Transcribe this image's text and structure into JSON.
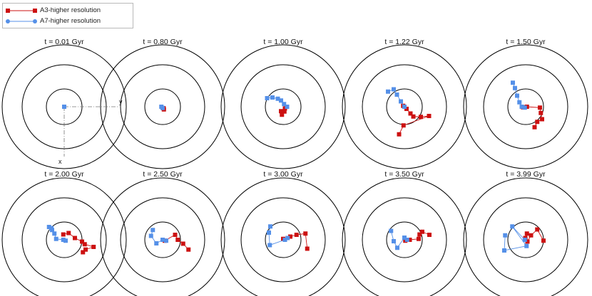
{
  "legend": {
    "a3_label": "A3-higher resolution",
    "a7_label": "A7-higher resolution"
  },
  "colors": {
    "a3": "#cc1111",
    "a7": "#5590e8",
    "ring": "#000000",
    "axis": "#777777"
  },
  "axis_labels": {
    "x": "x",
    "y": "y"
  },
  "chart_data": {
    "type": "scatter",
    "grid": false,
    "rings_per_panel": 3,
    "units": "inner ring radius = 1",
    "panels": [
      {
        "title": "t = 0.01 Gyr",
        "a3": [
          [
            0.0,
            0.0
          ]
        ],
        "a7": [
          [
            0.0,
            0.0
          ]
        ]
      },
      {
        "title": "t = 0.80 Gyr",
        "a3": [
          [
            0.07,
            -0.15
          ],
          [
            0.05,
            -0.08
          ]
        ],
        "a7": [
          [
            -0.07,
            0.0
          ],
          [
            0.0,
            -0.07
          ]
        ]
      },
      {
        "title": "t = 1.00 Gyr",
        "a3": [
          [
            0.17,
            0.0
          ],
          [
            0.1,
            -0.1
          ],
          [
            0.07,
            -0.27
          ],
          [
            -0.12,
            -0.25
          ],
          [
            -0.07,
            -0.45
          ]
        ],
        "a7": [
          [
            -0.9,
            0.48
          ],
          [
            -0.6,
            0.52
          ],
          [
            -0.3,
            0.45
          ],
          [
            -0.12,
            0.35
          ],
          [
            0.05,
            0.15
          ],
          [
            0.22,
            0.0
          ]
        ]
      },
      {
        "title": "t = 1.22 Gyr",
        "a3": [
          [
            -0.07,
            0.05
          ],
          [
            0.12,
            -0.12
          ],
          [
            0.34,
            -0.38
          ],
          [
            0.5,
            -0.55
          ],
          [
            0.92,
            -0.57
          ],
          [
            1.38,
            -0.52
          ],
          [
            -0.05,
            -1.05
          ],
          [
            -0.3,
            -1.55
          ]
        ],
        "a7": [
          [
            -0.92,
            0.85
          ],
          [
            -0.6,
            0.98
          ],
          [
            -0.42,
            0.68
          ],
          [
            -0.2,
            0.3
          ],
          [
            0.0,
            0.0
          ]
        ]
      },
      {
        "title": "t = 1.50 Gyr",
        "a3": [
          [
            -0.15,
            -0.03
          ],
          [
            0.07,
            0.0
          ],
          [
            0.8,
            -0.05
          ],
          [
            0.85,
            -0.35
          ],
          [
            0.92,
            -0.7
          ],
          [
            0.65,
            -0.85
          ],
          [
            0.5,
            -1.15
          ]
        ],
        "a7": [
          [
            -0.72,
            1.35
          ],
          [
            -0.6,
            1.05
          ],
          [
            -0.48,
            0.62
          ],
          [
            -0.35,
            0.25
          ],
          [
            -0.22,
            0.0
          ],
          [
            -0.05,
            -0.05
          ]
        ]
      },
      {
        "title": "t = 2.00 Gyr",
        "a3": [
          [
            -0.05,
            0.3
          ],
          [
            0.25,
            0.38
          ],
          [
            0.6,
            0.1
          ],
          [
            1.0,
            -0.1
          ],
          [
            1.15,
            -0.25
          ],
          [
            1.65,
            -0.4
          ],
          [
            1.2,
            -0.55
          ],
          [
            1.05,
            -0.7
          ]
        ],
        "a7": [
          [
            -0.85,
            0.72
          ],
          [
            -0.72,
            0.65
          ],
          [
            -0.68,
            0.55
          ],
          [
            -0.55,
            0.35
          ],
          [
            -0.45,
            0.05
          ],
          [
            -0.05,
            0.0
          ],
          [
            0.08,
            -0.05
          ]
        ]
      },
      {
        "title": "t = 2.50 Gyr",
        "a3": [
          [
            0.0,
            0.0
          ],
          [
            0.12,
            -0.05
          ],
          [
            0.7,
            0.28
          ],
          [
            0.85,
            0.0
          ],
          [
            1.15,
            -0.22
          ],
          [
            1.45,
            -0.55
          ]
        ],
        "a7": [
          [
            -0.55,
            0.55
          ],
          [
            -0.65,
            0.22
          ],
          [
            -0.35,
            -0.2
          ],
          [
            0.0,
            0.0
          ],
          [
            0.2,
            -0.05
          ]
        ]
      },
      {
        "title": "t = 3.00 Gyr",
        "a3": [
          [
            0.0,
            0.05
          ],
          [
            0.4,
            0.18
          ],
          [
            0.75,
            0.28
          ],
          [
            1.25,
            0.35
          ],
          [
            1.35,
            -0.5
          ]
        ],
        "a7": [
          [
            -0.72,
            0.75
          ],
          [
            -0.8,
            0.4
          ],
          [
            -0.75,
            -0.3
          ],
          [
            0.1,
            0.0
          ],
          [
            0.25,
            0.1
          ]
        ]
      },
      {
        "title": "t = 3.50 Gyr",
        "a3": [
          [
            0.05,
            -0.05
          ],
          [
            0.3,
            0.0
          ],
          [
            0.8,
            0.05
          ],
          [
            0.85,
            0.3
          ],
          [
            1.0,
            0.45
          ],
          [
            1.4,
            0.28
          ]
        ],
        "a7": [
          [
            -0.75,
            0.5
          ],
          [
            -0.6,
            -0.08
          ],
          [
            -0.4,
            -0.45
          ],
          [
            0.0,
            0.12
          ],
          [
            0.15,
            0.0
          ]
        ]
      },
      {
        "title": "t = 3.99 Gyr",
        "a3": [
          [
            -0.02,
            0.1
          ],
          [
            0.07,
            0.35
          ],
          [
            0.1,
            -0.1
          ],
          [
            0.3,
            0.25
          ],
          [
            0.65,
            0.58
          ],
          [
            1.0,
            -0.05
          ]
        ],
        "a7": [
          [
            -1.15,
            0.25
          ],
          [
            -1.2,
            -0.6
          ],
          [
            0.05,
            -0.35
          ],
          [
            -0.75,
            0.75
          ],
          [
            -0.05,
            0.0
          ]
        ]
      }
    ]
  }
}
